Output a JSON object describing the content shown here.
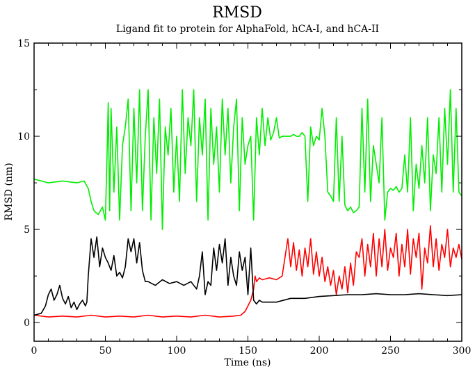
{
  "chart_data": {
    "type": "line",
    "title": "RMSD",
    "subtitle": "Ligand fit to protein for AlphaFold, hCA-I, and hCA-II",
    "xlabel": "Time (ns)",
    "ylabel": "RMSD (nm)",
    "xlim": [
      0,
      300
    ],
    "ylim": [
      -1,
      15
    ],
    "xticks": [
      0,
      50,
      100,
      150,
      200,
      250,
      300
    ],
    "yticks": [
      0,
      5,
      10,
      15
    ],
    "grid": false,
    "legend": "none",
    "series": [
      {
        "color": "#00ee00",
        "x": [
          0,
          5,
          10,
          20,
          30,
          35,
          38,
          40,
          42,
          45,
          48,
          50,
          51,
          52,
          53,
          54,
          56,
          58,
          60,
          62,
          64,
          66,
          68,
          70,
          72,
          74,
          76,
          78,
          80,
          82,
          84,
          86,
          88,
          90,
          92,
          94,
          96,
          98,
          100,
          102,
          104,
          106,
          108,
          110,
          112,
          114,
          116,
          118,
          120,
          122,
          124,
          126,
          128,
          130,
          132,
          134,
          136,
          138,
          140,
          142,
          144,
          146,
          148,
          150,
          152,
          154,
          156,
          158,
          160,
          162,
          164,
          166,
          168,
          170,
          172,
          174,
          176,
          178,
          180,
          182,
          184,
          186,
          188,
          190,
          192,
          194,
          196,
          198,
          200,
          202,
          204,
          206,
          208,
          210,
          212,
          214,
          216,
          218,
          220,
          222,
          224,
          226,
          228,
          230,
          232,
          234,
          236,
          238,
          240,
          242,
          244,
          246,
          248,
          250,
          252,
          254,
          256,
          258,
          260,
          262,
          264,
          266,
          268,
          270,
          272,
          274,
          276,
          278,
          280,
          282,
          284,
          286,
          288,
          290,
          292,
          294,
          296,
          298,
          300
        ],
        "values": [
          7.7,
          7.6,
          7.5,
          7.6,
          7.5,
          7.6,
          7.2,
          6.5,
          6.0,
          5.8,
          6.2,
          5.5,
          8.5,
          11.8,
          6.0,
          11.5,
          7.0,
          10.5,
          5.5,
          9.5,
          10.5,
          12.0,
          6.0,
          11.5,
          7.5,
          12.5,
          6.0,
          10.0,
          12.5,
          5.5,
          11.0,
          8.0,
          12.0,
          5.0,
          10.5,
          9.0,
          11.5,
          7.0,
          10.0,
          6.5,
          12.5,
          8.0,
          11.0,
          9.5,
          12.5,
          6.5,
          11.0,
          9.0,
          12.0,
          5.5,
          11.5,
          8.5,
          10.5,
          7.0,
          12.0,
          9.0,
          11.5,
          7.5,
          10.5,
          12.0,
          6.0,
          11.0,
          8.5,
          9.5,
          10.0,
          5.5,
          11.0,
          9.0,
          11.5,
          9.5,
          11.0,
          9.8,
          10.2,
          11.0,
          9.9,
          10.0,
          10.0,
          10.0,
          10.0,
          10.1,
          10.0,
          10.0,
          10.2,
          10.0,
          6.5,
          10.5,
          9.5,
          10.0,
          9.8,
          11.5,
          10.0,
          7.0,
          6.8,
          6.5,
          11.0,
          6.5,
          10.0,
          6.3,
          6.0,
          6.2,
          5.9,
          6.0,
          6.2,
          11.5,
          7.0,
          12.0,
          6.5,
          9.5,
          8.5,
          7.5,
          11.0,
          5.5,
          7.0,
          7.2,
          7.1,
          7.3,
          7.0,
          7.2,
          9.0,
          7.0,
          11.0,
          6.0,
          8.5,
          7.2,
          9.5,
          7.5,
          11.0,
          6.0,
          9.0,
          8.0,
          11.0,
          7.0,
          11.5,
          8.5,
          12.5,
          7.0,
          11.5,
          7.0,
          6.8
        ]
      },
      {
        "color": "#ff0000",
        "x": [
          0,
          10,
          20,
          30,
          40,
          50,
          60,
          70,
          80,
          90,
          100,
          110,
          120,
          130,
          140,
          145,
          148,
          150,
          152,
          154,
          155,
          156,
          158,
          160,
          165,
          170,
          172,
          174,
          176,
          178,
          180,
          182,
          184,
          186,
          188,
          190,
          192,
          194,
          196,
          198,
          200,
          202,
          204,
          206,
          208,
          210,
          212,
          214,
          216,
          218,
          220,
          222,
          224,
          226,
          228,
          230,
          232,
          234,
          236,
          238,
          240,
          242,
          244,
          246,
          248,
          250,
          252,
          254,
          256,
          258,
          260,
          262,
          264,
          266,
          268,
          270,
          272,
          274,
          276,
          278,
          280,
          282,
          284,
          286,
          288,
          290,
          292,
          294,
          296,
          298,
          300
        ],
        "values": [
          0.4,
          0.3,
          0.35,
          0.3,
          0.4,
          0.3,
          0.35,
          0.3,
          0.4,
          0.3,
          0.35,
          0.3,
          0.4,
          0.3,
          0.35,
          0.4,
          0.6,
          0.9,
          1.2,
          1.8,
          2.5,
          2.2,
          2.4,
          2.3,
          2.4,
          2.3,
          2.4,
          2.5,
          3.5,
          4.5,
          3.0,
          4.3,
          2.8,
          3.9,
          2.5,
          4.0,
          3.0,
          4.5,
          2.6,
          3.8,
          2.5,
          3.5,
          2.2,
          3.0,
          2.0,
          2.8,
          1.5,
          2.5,
          1.8,
          3.0,
          1.6,
          3.2,
          2.0,
          3.8,
          3.5,
          4.5,
          2.5,
          4.2,
          3.0,
          4.8,
          2.5,
          4.5,
          3.0,
          5.0,
          2.8,
          4.0,
          3.5,
          4.8,
          2.5,
          4.2,
          3.0,
          5.0,
          2.6,
          4.5,
          3.5,
          4.8,
          1.8,
          4.0,
          3.2,
          5.2,
          3.0,
          4.5,
          2.8,
          4.2,
          3.5,
          5.0,
          3.0,
          4.0,
          3.5,
          4.2,
          3.4
        ]
      },
      {
        "color": "#000000",
        "x": [
          0,
          5,
          8,
          10,
          12,
          14,
          16,
          18,
          20,
          22,
          24,
          26,
          28,
          30,
          32,
          34,
          36,
          37,
          38,
          40,
          42,
          44,
          46,
          48,
          50,
          52,
          54,
          56,
          58,
          60,
          62,
          64,
          66,
          68,
          70,
          72,
          74,
          76,
          78,
          80,
          85,
          90,
          95,
          100,
          105,
          110,
          114,
          116,
          118,
          120,
          122,
          124,
          126,
          128,
          130,
          132,
          134,
          136,
          138,
          140,
          142,
          144,
          146,
          148,
          150,
          152,
          154,
          156,
          158,
          160,
          170,
          180,
          190,
          200,
          210,
          220,
          230,
          240,
          250,
          260,
          270,
          280,
          290,
          300
        ],
        "values": [
          0.4,
          0.5,
          0.9,
          1.5,
          1.8,
          1.2,
          1.5,
          2.0,
          1.3,
          1.0,
          1.4,
          0.8,
          1.1,
          0.7,
          1.0,
          1.2,
          0.9,
          1.1,
          2.5,
          4.5,
          3.5,
          4.6,
          3.0,
          4.0,
          3.5,
          3.2,
          2.8,
          3.6,
          2.5,
          2.7,
          2.4,
          3.0,
          4.5,
          3.8,
          4.5,
          3.2,
          4.3,
          2.8,
          2.2,
          2.2,
          2.0,
          2.3,
          2.1,
          2.2,
          2.0,
          2.2,
          1.8,
          2.5,
          3.8,
          1.5,
          2.2,
          2.0,
          4.0,
          2.8,
          4.2,
          3.2,
          4.5,
          2.0,
          3.5,
          2.5,
          2.0,
          3.8,
          2.8,
          3.5,
          1.5,
          4.0,
          1.2,
          1.0,
          1.2,
          1.1,
          1.1,
          1.3,
          1.3,
          1.4,
          1.45,
          1.5,
          1.5,
          1.55,
          1.5,
          1.5,
          1.55,
          1.5,
          1.45,
          1.5
        ]
      }
    ]
  }
}
